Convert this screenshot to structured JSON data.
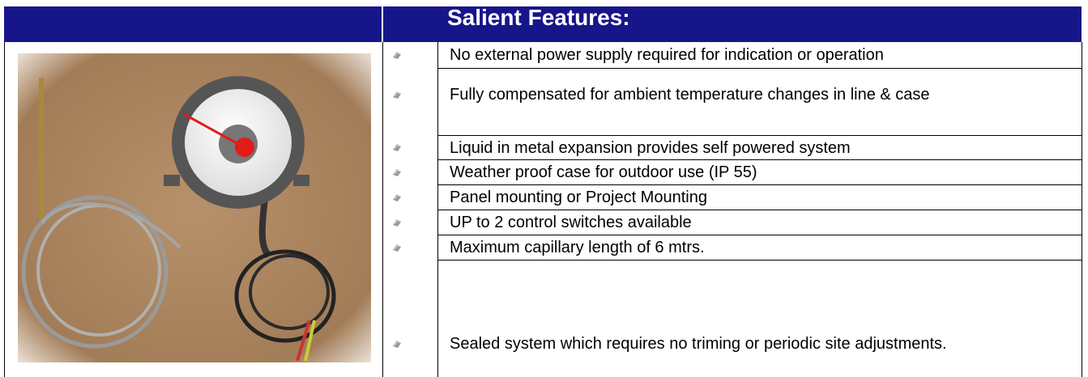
{
  "header": {
    "title": "Salient Features:"
  },
  "features": [
    "No external power supply required for indication or operation",
    "Fully compensated for ambient temperature changes in line & case",
    "Liquid in metal expansion provides self powered system",
    "Weather proof case for outdoor use (IP 55)",
    "Panel mounting or Project Mounting",
    "UP to 2 control switches available",
    "Maximum capillary length of 6 mtrs.",
    "Sealed system which requires no triming or periodic site adjustments."
  ]
}
